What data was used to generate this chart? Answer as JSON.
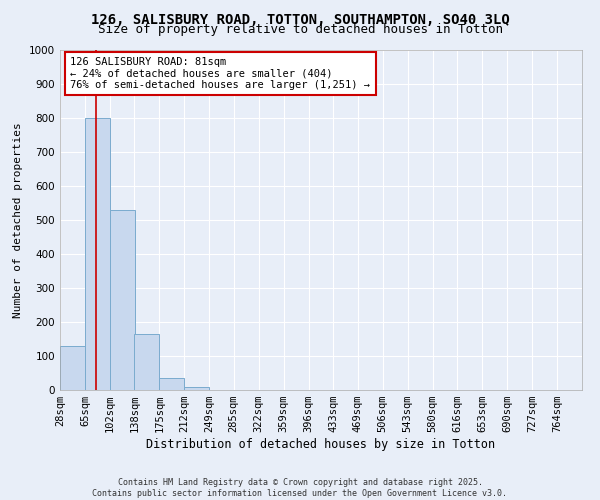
{
  "title1": "126, SALISBURY ROAD, TOTTON, SOUTHAMPTON, SO40 3LQ",
  "title2": "Size of property relative to detached houses in Totton",
  "xlabel": "Distribution of detached houses by size in Totton",
  "ylabel": "Number of detached properties",
  "bins": [
    "28sqm",
    "65sqm",
    "102sqm",
    "138sqm",
    "175sqm",
    "212sqm",
    "249sqm",
    "285sqm",
    "322sqm",
    "359sqm",
    "396sqm",
    "433sqm",
    "469sqm",
    "506sqm",
    "543sqm",
    "580sqm",
    "616sqm",
    "653sqm",
    "690sqm",
    "727sqm",
    "764sqm"
  ],
  "bin_edges": [
    28,
    65,
    102,
    138,
    175,
    212,
    249,
    285,
    322,
    359,
    396,
    433,
    469,
    506,
    543,
    580,
    616,
    653,
    690,
    727,
    764
  ],
  "bar_heights": [
    130,
    800,
    530,
    165,
    35,
    10,
    0,
    0,
    0,
    0,
    0,
    0,
    0,
    0,
    0,
    0,
    0,
    0,
    0,
    0
  ],
  "bar_color": "#c8d8ee",
  "bar_edge_color": "#7aabce",
  "property_line_x": 81,
  "property_line_color": "#cc0000",
  "annotation_text": "126 SALISBURY ROAD: 81sqm\n← 24% of detached houses are smaller (404)\n76% of semi-detached houses are larger (1,251) →",
  "annotation_box_color": "#ffffff",
  "annotation_box_edge": "#cc0000",
  "ylim": [
    0,
    1000
  ],
  "yticks": [
    0,
    100,
    200,
    300,
    400,
    500,
    600,
    700,
    800,
    900,
    1000
  ],
  "background_color": "#e8eef8",
  "grid_color": "#ffffff",
  "footer": "Contains HM Land Registry data © Crown copyright and database right 2025.\nContains public sector information licensed under the Open Government Licence v3.0.",
  "title1_fontsize": 10,
  "title2_fontsize": 9,
  "xlabel_fontsize": 8.5,
  "ylabel_fontsize": 8,
  "tick_fontsize": 7.5,
  "annotation_fontsize": 7.5,
  "footer_fontsize": 6
}
